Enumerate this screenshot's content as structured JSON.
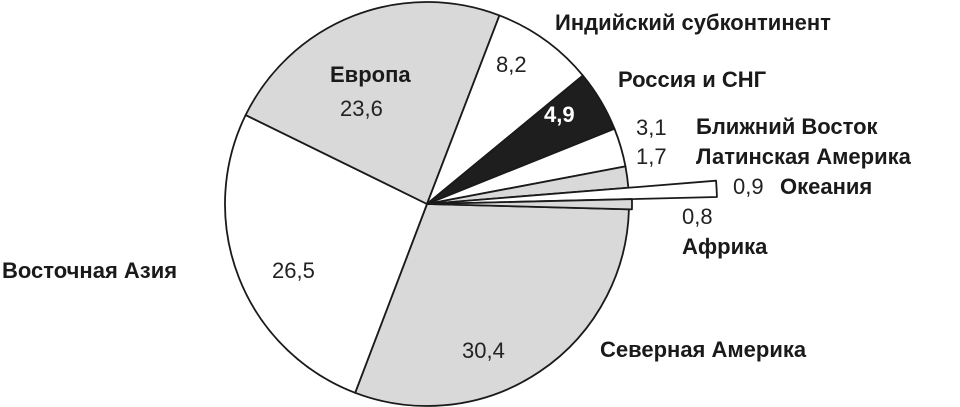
{
  "chart_data": {
    "type": "pie",
    "units": "",
    "slices": [
      {
        "label": "Северная Америка",
        "value": 30.4,
        "value_text": "30,4",
        "color": "#d9d9d9"
      },
      {
        "label": "Восточная Азия",
        "value": 26.5,
        "value_text": "26,5",
        "color": "#ffffff"
      },
      {
        "label": "Европа",
        "value": 23.6,
        "value_text": "23,6",
        "color": "#d9d9d9"
      },
      {
        "label": "Индийский субконтинент",
        "value": 8.2,
        "value_text": "8,2",
        "color": "#ffffff"
      },
      {
        "label": "Россия и СНГ",
        "value": 4.9,
        "value_text": "4,9",
        "color": "#1e1e1e"
      },
      {
        "label": "Ближний Восток",
        "value": 3.1,
        "value_text": "3,1",
        "color": "#ffffff"
      },
      {
        "label": "Латинская Америка",
        "value": 1.7,
        "value_text": "1,7",
        "color": "#d9d9d9"
      },
      {
        "label": "Океания",
        "value": 0.9,
        "value_text": "0,9",
        "color": "#ffffff"
      },
      {
        "label": "Африка",
        "value": 0.8,
        "value_text": "0,8",
        "color": "#d9d9d9"
      }
    ]
  }
}
